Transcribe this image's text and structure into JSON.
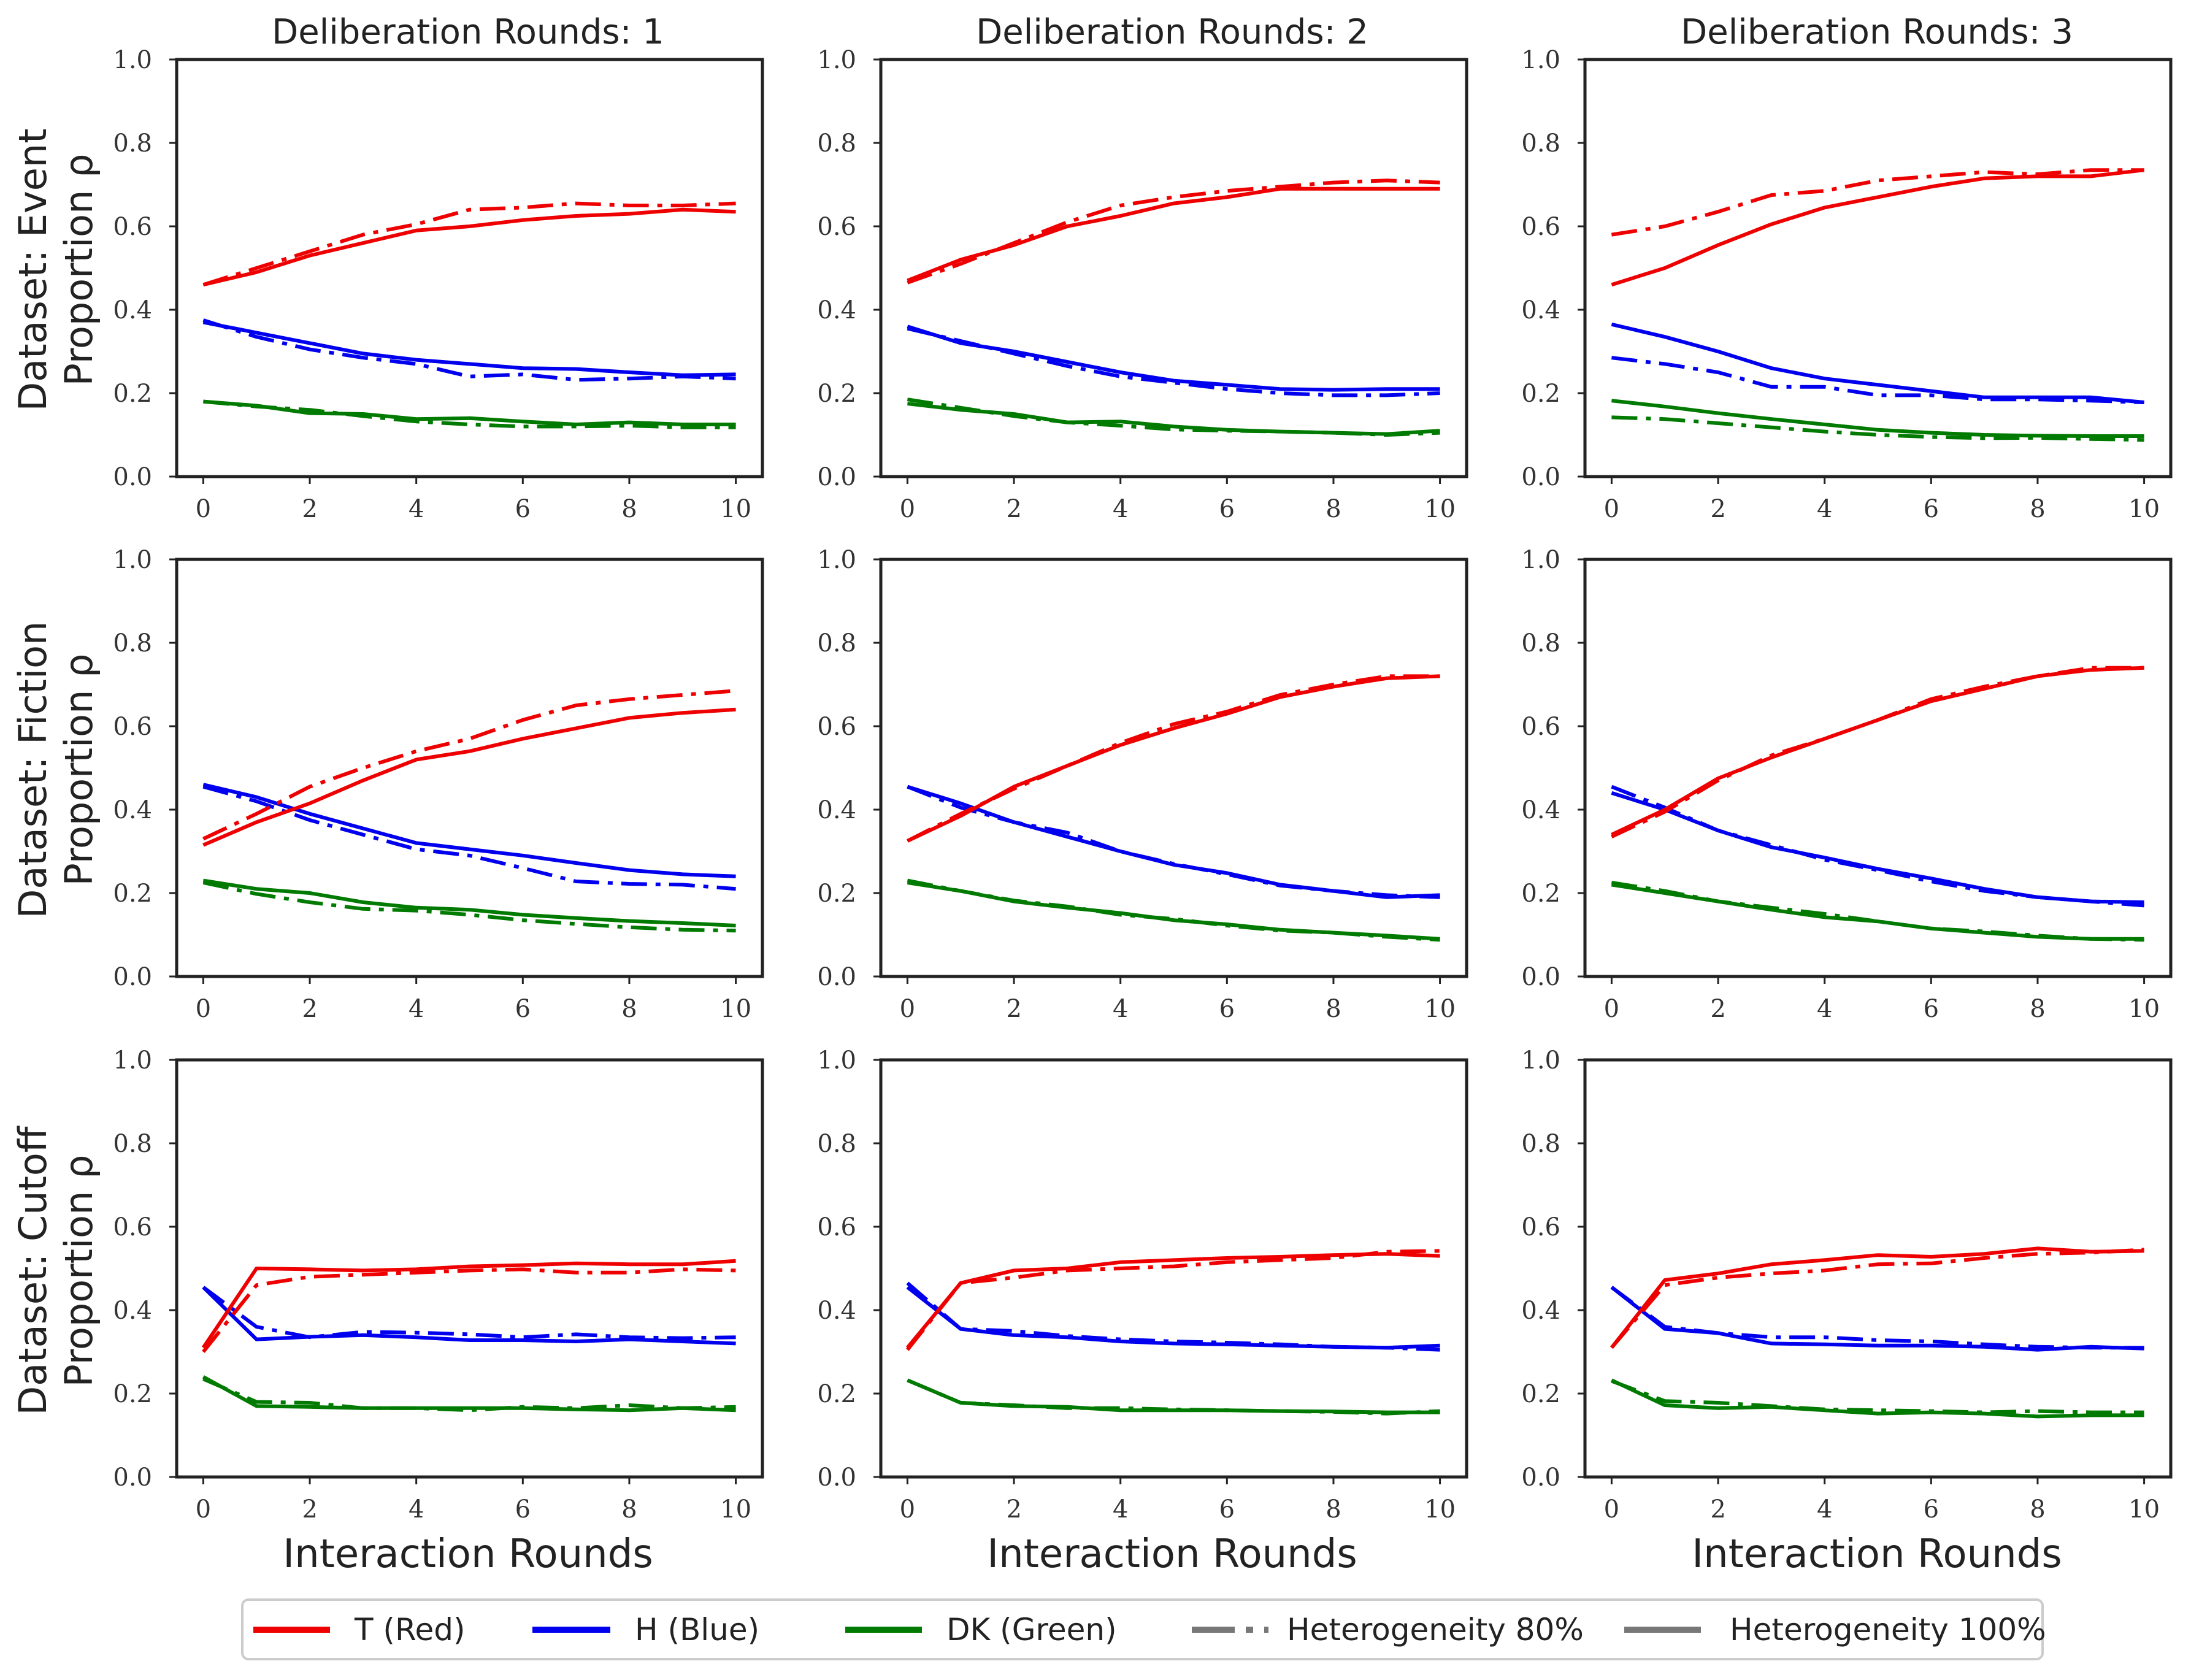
{
  "figure": {
    "col_titles": [
      "Deliberation Rounds: 1",
      "Deliberation Rounds: 2",
      "Deliberation Rounds: 3"
    ],
    "row_labels": [
      {
        "dataset": "Dataset: Event",
        "ylabel": "Proportion ρ"
      },
      {
        "dataset": "Dataset: Fiction",
        "ylabel": "Proportion ρ"
      },
      {
        "dataset": "Dataset: Cutoff",
        "ylabel": "Proportion ρ"
      }
    ],
    "xlabel": "Interaction Rounds",
    "legend": {
      "items": [
        {
          "label": "T (Red)",
          "color": "#ee0000",
          "style": "solid"
        },
        {
          "label": "H (Blue)",
          "color": "#0000ee",
          "style": "solid"
        },
        {
          "label": "DK (Green)",
          "color": "#007a00",
          "style": "solid"
        },
        {
          "label": "Heterogeneity 80%",
          "color": "#777777",
          "style": "dashdot"
        },
        {
          "label": "Heterogeneity 100%",
          "color": "#777777",
          "style": "solid"
        }
      ]
    }
  },
  "chart_data": {
    "type": "line",
    "x": [
      0,
      1,
      2,
      3,
      4,
      5,
      6,
      7,
      8,
      9,
      10
    ],
    "xticks": [
      "0",
      "2",
      "4",
      "6",
      "8",
      "10"
    ],
    "yticks": [
      "0.0",
      "0.2",
      "0.4",
      "0.6",
      "0.8",
      "1.0"
    ],
    "xlim": [
      -0.5,
      10.5
    ],
    "ylim": [
      0,
      1
    ],
    "colors": {
      "T": "#ee0000",
      "H": "#0000ee",
      "DK": "#007a00"
    },
    "panels": [
      [
        {
          "dataset": "Event",
          "deliberation_rounds": 1,
          "series": {
            "T_100": [
              0.46,
              0.49,
              0.53,
              0.56,
              0.59,
              0.6,
              0.615,
              0.625,
              0.63,
              0.64,
              0.635
            ],
            "T_80": [
              0.46,
              0.5,
              0.54,
              0.58,
              0.605,
              0.64,
              0.645,
              0.655,
              0.65,
              0.65,
              0.655
            ],
            "H_100": [
              0.37,
              0.345,
              0.32,
              0.295,
              0.28,
              0.27,
              0.26,
              0.258,
              0.25,
              0.243,
              0.245
            ],
            "H_80": [
              0.375,
              0.335,
              0.305,
              0.285,
              0.27,
              0.24,
              0.245,
              0.232,
              0.235,
              0.24,
              0.235
            ],
            "DK_100": [
              0.18,
              0.17,
              0.152,
              0.15,
              0.138,
              0.14,
              0.132,
              0.125,
              0.13,
              0.125,
              0.125
            ],
            "DK_80": [
              0.18,
              0.168,
              0.16,
              0.145,
              0.132,
              0.125,
              0.12,
              0.12,
              0.122,
              0.118,
              0.118
            ]
          }
        },
        {
          "dataset": "Event",
          "deliberation_rounds": 2,
          "series": {
            "T_100": [
              0.47,
              0.52,
              0.555,
              0.6,
              0.625,
              0.655,
              0.67,
              0.69,
              0.69,
              0.69,
              0.69
            ],
            "T_80": [
              0.465,
              0.51,
              0.56,
              0.61,
              0.65,
              0.67,
              0.685,
              0.695,
              0.705,
              0.71,
              0.705
            ],
            "H_100": [
              0.36,
              0.32,
              0.3,
              0.275,
              0.25,
              0.23,
              0.22,
              0.21,
              0.208,
              0.21,
              0.21
            ],
            "H_80": [
              0.355,
              0.325,
              0.295,
              0.265,
              0.24,
              0.225,
              0.21,
              0.2,
              0.195,
              0.195,
              0.2
            ],
            "DK_100": [
              0.175,
              0.16,
              0.15,
              0.13,
              0.132,
              0.12,
              0.112,
              0.108,
              0.105,
              0.102,
              0.11
            ],
            "DK_80": [
              0.185,
              0.165,
              0.145,
              0.13,
              0.122,
              0.113,
              0.11,
              0.108,
              0.105,
              0.1,
              0.105
            ]
          }
        },
        {
          "dataset": "Event",
          "deliberation_rounds": 3,
          "series": {
            "T_100": [
              0.46,
              0.5,
              0.555,
              0.605,
              0.645,
              0.67,
              0.695,
              0.715,
              0.72,
              0.72,
              0.735
            ],
            "T_80": [
              0.58,
              0.6,
              0.635,
              0.675,
              0.685,
              0.71,
              0.72,
              0.73,
              0.725,
              0.735,
              0.735
            ],
            "H_100": [
              0.365,
              0.335,
              0.3,
              0.26,
              0.235,
              0.22,
              0.205,
              0.19,
              0.19,
              0.19,
              0.178
            ],
            "H_80": [
              0.285,
              0.27,
              0.25,
              0.215,
              0.215,
              0.195,
              0.195,
              0.185,
              0.185,
              0.182,
              0.178
            ],
            "DK_100": [
              0.182,
              0.168,
              0.152,
              0.138,
              0.125,
              0.112,
              0.105,
              0.1,
              0.098,
              0.097,
              0.097
            ],
            "DK_80": [
              0.142,
              0.138,
              0.128,
              0.118,
              0.108,
              0.1,
              0.095,
              0.092,
              0.093,
              0.09,
              0.088
            ]
          }
        }
      ],
      [
        {
          "dataset": "Fiction",
          "deliberation_rounds": 1,
          "series": {
            "T_100": [
              0.315,
              0.37,
              0.415,
              0.47,
              0.52,
              0.54,
              0.57,
              0.595,
              0.62,
              0.632,
              0.64
            ],
            "T_80": [
              0.33,
              0.39,
              0.455,
              0.5,
              0.54,
              0.57,
              0.615,
              0.65,
              0.665,
              0.675,
              0.685
            ],
            "H_100": [
              0.46,
              0.43,
              0.39,
              0.355,
              0.32,
              0.305,
              0.29,
              0.272,
              0.255,
              0.245,
              0.24
            ],
            "H_80": [
              0.455,
              0.42,
              0.375,
              0.34,
              0.305,
              0.29,
              0.26,
              0.228,
              0.222,
              0.22,
              0.21
            ],
            "DK_100": [
              0.23,
              0.21,
              0.2,
              0.178,
              0.165,
              0.16,
              0.148,
              0.14,
              0.133,
              0.128,
              0.122
            ],
            "DK_80": [
              0.225,
              0.198,
              0.178,
              0.162,
              0.158,
              0.148,
              0.135,
              0.126,
              0.118,
              0.112,
              0.11
            ]
          }
        },
        {
          "dataset": "Fiction",
          "deliberation_rounds": 2,
          "series": {
            "T_100": [
              0.325,
              0.385,
              0.455,
              0.505,
              0.555,
              0.595,
              0.63,
              0.67,
              0.695,
              0.715,
              0.72
            ],
            "T_80": [
              0.325,
              0.39,
              0.45,
              0.505,
              0.56,
              0.605,
              0.635,
              0.675,
              0.7,
              0.72,
              0.72
            ],
            "H_100": [
              0.455,
              0.415,
              0.37,
              0.335,
              0.3,
              0.268,
              0.248,
              0.22,
              0.205,
              0.19,
              0.195
            ],
            "H_80": [
              0.455,
              0.405,
              0.37,
              0.345,
              0.3,
              0.27,
              0.245,
              0.218,
              0.205,
              0.195,
              0.19
            ],
            "DK_100": [
              0.225,
              0.205,
              0.18,
              0.165,
              0.152,
              0.135,
              0.125,
              0.112,
              0.105,
              0.098,
              0.09
            ],
            "DK_80": [
              0.23,
              0.205,
              0.182,
              0.168,
              0.148,
              0.138,
              0.122,
              0.11,
              0.105,
              0.095,
              0.088
            ]
          }
        },
        {
          "dataset": "Fiction",
          "deliberation_rounds": 3,
          "series": {
            "T_100": [
              0.34,
              0.4,
              0.475,
              0.525,
              0.57,
              0.615,
              0.66,
              0.69,
              0.72,
              0.735,
              0.74
            ],
            "T_80": [
              0.335,
              0.395,
              0.47,
              0.53,
              0.57,
              0.615,
              0.665,
              0.695,
              0.72,
              0.74,
              0.74
            ],
            "H_100": [
              0.44,
              0.4,
              0.35,
              0.31,
              0.285,
              0.258,
              0.235,
              0.21,
              0.19,
              0.18,
              0.178
            ],
            "H_80": [
              0.455,
              0.405,
              0.35,
              0.315,
              0.28,
              0.255,
              0.228,
              0.205,
              0.19,
              0.18,
              0.17
            ],
            "DK_100": [
              0.22,
              0.2,
              0.18,
              0.16,
              0.142,
              0.132,
              0.115,
              0.105,
              0.095,
              0.09,
              0.09
            ],
            "DK_80": [
              0.225,
              0.205,
              0.18,
              0.165,
              0.15,
              0.132,
              0.115,
              0.108,
              0.098,
              0.09,
              0.088
            ]
          }
        }
      ],
      [
        {
          "dataset": "Cutoff",
          "deliberation_rounds": 1,
          "series": {
            "T_100": [
              0.31,
              0.5,
              0.498,
              0.495,
              0.498,
              0.505,
              0.508,
              0.512,
              0.51,
              0.51,
              0.518
            ],
            "T_80": [
              0.3,
              0.46,
              0.48,
              0.485,
              0.49,
              0.495,
              0.498,
              0.49,
              0.49,
              0.498,
              0.495
            ],
            "H_100": [
              0.455,
              0.33,
              0.336,
              0.34,
              0.335,
              0.328,
              0.328,
              0.325,
              0.33,
              0.325,
              0.32
            ],
            "H_80": [
              0.455,
              0.36,
              0.335,
              0.348,
              0.346,
              0.342,
              0.335,
              0.342,
              0.335,
              0.333,
              0.335
            ],
            "DK_100": [
              0.24,
              0.17,
              0.168,
              0.165,
              0.165,
              0.165,
              0.165,
              0.162,
              0.16,
              0.165,
              0.16
            ],
            "DK_80": [
              0.235,
              0.18,
              0.178,
              0.165,
              0.165,
              0.16,
              0.168,
              0.165,
              0.172,
              0.165,
              0.168
            ]
          }
        },
        {
          "dataset": "Cutoff",
          "deliberation_rounds": 2,
          "series": {
            "T_100": [
              0.31,
              0.465,
              0.495,
              0.5,
              0.515,
              0.52,
              0.525,
              0.528,
              0.532,
              0.535,
              0.53
            ],
            "T_80": [
              0.305,
              0.465,
              0.478,
              0.495,
              0.5,
              0.505,
              0.515,
              0.52,
              0.525,
              0.54,
              0.542
            ],
            "H_100": [
              0.455,
              0.355,
              0.34,
              0.335,
              0.325,
              0.32,
              0.318,
              0.315,
              0.312,
              0.31,
              0.315
            ],
            "H_80": [
              0.465,
              0.355,
              0.35,
              0.338,
              0.33,
              0.325,
              0.322,
              0.318,
              0.312,
              0.31,
              0.305
            ],
            "DK_100": [
              0.232,
              0.178,
              0.17,
              0.168,
              0.16,
              0.16,
              0.16,
              0.158,
              0.157,
              0.155,
              0.155
            ],
            "DK_80": [
              0.232,
              0.178,
              0.172,
              0.165,
              0.165,
              0.162,
              0.16,
              0.158,
              0.156,
              0.152,
              0.158
            ]
          }
        },
        {
          "dataset": "Cutoff",
          "deliberation_rounds": 3,
          "series": {
            "T_100": [
              0.31,
              0.472,
              0.488,
              0.51,
              0.52,
              0.532,
              0.528,
              0.535,
              0.548,
              0.54,
              0.542
            ],
            "T_80": [
              0.31,
              0.46,
              0.478,
              0.488,
              0.495,
              0.51,
              0.512,
              0.525,
              0.535,
              0.538,
              0.545
            ],
            "H_100": [
              0.455,
              0.355,
              0.345,
              0.32,
              0.318,
              0.315,
              0.315,
              0.312,
              0.305,
              0.312,
              0.308
            ],
            "H_80": [
              0.455,
              0.36,
              0.345,
              0.335,
              0.335,
              0.328,
              0.325,
              0.318,
              0.312,
              0.31,
              0.31
            ],
            "DK_100": [
              0.232,
              0.172,
              0.165,
              0.168,
              0.16,
              0.152,
              0.155,
              0.152,
              0.145,
              0.148,
              0.148
            ],
            "DK_80": [
              0.23,
              0.182,
              0.178,
              0.17,
              0.162,
              0.16,
              0.158,
              0.155,
              0.158,
              0.155,
              0.155
            ]
          }
        }
      ]
    ]
  }
}
